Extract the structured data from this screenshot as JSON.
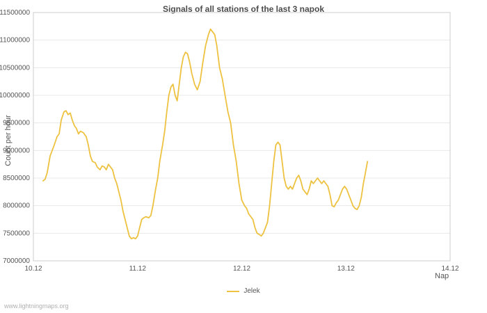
{
  "chart_data": {
    "type": "line",
    "title": "Signals of all stations of the last 3 napok",
    "xlabel": "Nap",
    "ylabel": "Count per hour",
    "xlim": [
      0,
      4
    ],
    "ylim": [
      7000000,
      11500000
    ],
    "grid": "horizontal",
    "grid_color": "#e8e8e8",
    "border_color": "#cccccc",
    "text_color": "#545454",
    "legend_position": "bottom-center",
    "yticks": [
      7000000,
      7500000,
      8000000,
      8500000,
      9000000,
      9500000,
      10000000,
      10500000,
      11000000,
      11500000
    ],
    "xticks": [
      {
        "value": 0,
        "label": "10.12"
      },
      {
        "value": 1,
        "label": "11.12"
      },
      {
        "value": 2,
        "label": "12.12"
      },
      {
        "value": 3,
        "label": "13.12"
      },
      {
        "value": 4,
        "label": "14.12"
      }
    ],
    "series": [
      {
        "name": "Jelek",
        "color": "#edc240",
        "points": [
          [
            0.093,
            8450000
          ],
          [
            0.113,
            8480000
          ],
          [
            0.133,
            8600000
          ],
          [
            0.16,
            8900000
          ],
          [
            0.18,
            9000000
          ],
          [
            0.2,
            9100000
          ],
          [
            0.227,
            9250000
          ],
          [
            0.247,
            9300000
          ],
          [
            0.267,
            9550000
          ],
          [
            0.293,
            9700000
          ],
          [
            0.313,
            9720000
          ],
          [
            0.333,
            9650000
          ],
          [
            0.353,
            9680000
          ],
          [
            0.373,
            9550000
          ],
          [
            0.393,
            9450000
          ],
          [
            0.413,
            9400000
          ],
          [
            0.433,
            9300000
          ],
          [
            0.453,
            9350000
          ],
          [
            0.48,
            9320000
          ],
          [
            0.507,
            9250000
          ],
          [
            0.527,
            9100000
          ],
          [
            0.547,
            8900000
          ],
          [
            0.567,
            8800000
          ],
          [
            0.593,
            8780000
          ],
          [
            0.613,
            8700000
          ],
          [
            0.64,
            8650000
          ],
          [
            0.66,
            8720000
          ],
          [
            0.68,
            8700000
          ],
          [
            0.7,
            8650000
          ],
          [
            0.72,
            8750000
          ],
          [
            0.74,
            8700000
          ],
          [
            0.76,
            8650000
          ],
          [
            0.78,
            8500000
          ],
          [
            0.8,
            8400000
          ],
          [
            0.82,
            8250000
          ],
          [
            0.84,
            8100000
          ],
          [
            0.86,
            7900000
          ],
          [
            0.88,
            7750000
          ],
          [
            0.9,
            7600000
          ],
          [
            0.92,
            7450000
          ],
          [
            0.94,
            7400000
          ],
          [
            0.96,
            7420000
          ],
          [
            0.98,
            7400000
          ],
          [
            1.0,
            7450000
          ],
          [
            1.02,
            7600000
          ],
          [
            1.04,
            7750000
          ],
          [
            1.06,
            7780000
          ],
          [
            1.08,
            7800000
          ],
          [
            1.107,
            7780000
          ],
          [
            1.127,
            7820000
          ],
          [
            1.147,
            8000000
          ],
          [
            1.173,
            8300000
          ],
          [
            1.193,
            8500000
          ],
          [
            1.213,
            8800000
          ],
          [
            1.24,
            9100000
          ],
          [
            1.26,
            9350000
          ],
          [
            1.28,
            9700000
          ],
          [
            1.3,
            10000000
          ],
          [
            1.32,
            10150000
          ],
          [
            1.34,
            10200000
          ],
          [
            1.36,
            10000000
          ],
          [
            1.38,
            9900000
          ],
          [
            1.4,
            10200000
          ],
          [
            1.42,
            10500000
          ],
          [
            1.44,
            10700000
          ],
          [
            1.46,
            10780000
          ],
          [
            1.48,
            10750000
          ],
          [
            1.5,
            10600000
          ],
          [
            1.52,
            10400000
          ],
          [
            1.547,
            10200000
          ],
          [
            1.573,
            10100000
          ],
          [
            1.6,
            10250000
          ],
          [
            1.627,
            10600000
          ],
          [
            1.653,
            10900000
          ],
          [
            1.68,
            11100000
          ],
          [
            1.7,
            11200000
          ],
          [
            1.72,
            11150000
          ],
          [
            1.74,
            11100000
          ],
          [
            1.76,
            10900000
          ],
          [
            1.787,
            10500000
          ],
          [
            1.813,
            10300000
          ],
          [
            1.84,
            10000000
          ],
          [
            1.867,
            9700000
          ],
          [
            1.893,
            9500000
          ],
          [
            1.92,
            9100000
          ],
          [
            1.947,
            8800000
          ],
          [
            1.973,
            8400000
          ],
          [
            2.0,
            8100000
          ],
          [
            2.027,
            8000000
          ],
          [
            2.047,
            7950000
          ],
          [
            2.067,
            7850000
          ],
          [
            2.087,
            7800000
          ],
          [
            2.107,
            7750000
          ],
          [
            2.127,
            7600000
          ],
          [
            2.147,
            7500000
          ],
          [
            2.167,
            7480000
          ],
          [
            2.187,
            7450000
          ],
          [
            2.207,
            7500000
          ],
          [
            2.227,
            7600000
          ],
          [
            2.247,
            7700000
          ],
          [
            2.267,
            8000000
          ],
          [
            2.287,
            8400000
          ],
          [
            2.307,
            8800000
          ],
          [
            2.327,
            9100000
          ],
          [
            2.347,
            9150000
          ],
          [
            2.367,
            9100000
          ],
          [
            2.387,
            8800000
          ],
          [
            2.407,
            8500000
          ],
          [
            2.427,
            8350000
          ],
          [
            2.447,
            8300000
          ],
          [
            2.467,
            8350000
          ],
          [
            2.487,
            8300000
          ],
          [
            2.507,
            8400000
          ],
          [
            2.527,
            8500000
          ],
          [
            2.547,
            8550000
          ],
          [
            2.567,
            8450000
          ],
          [
            2.587,
            8300000
          ],
          [
            2.607,
            8250000
          ],
          [
            2.627,
            8200000
          ],
          [
            2.647,
            8300000
          ],
          [
            2.667,
            8450000
          ],
          [
            2.687,
            8400000
          ],
          [
            2.707,
            8450000
          ],
          [
            2.727,
            8500000
          ],
          [
            2.747,
            8450000
          ],
          [
            2.767,
            8400000
          ],
          [
            2.787,
            8450000
          ],
          [
            2.807,
            8400000
          ],
          [
            2.827,
            8350000
          ],
          [
            2.847,
            8200000
          ],
          [
            2.867,
            8000000
          ],
          [
            2.887,
            7980000
          ],
          [
            2.907,
            8050000
          ],
          [
            2.927,
            8100000
          ],
          [
            2.947,
            8200000
          ],
          [
            2.967,
            8300000
          ],
          [
            2.987,
            8350000
          ],
          [
            3.007,
            8300000
          ],
          [
            3.027,
            8200000
          ],
          [
            3.047,
            8100000
          ],
          [
            3.067,
            8000000
          ],
          [
            3.087,
            7950000
          ],
          [
            3.107,
            7930000
          ],
          [
            3.127,
            8000000
          ],
          [
            3.147,
            8150000
          ],
          [
            3.167,
            8400000
          ],
          [
            3.187,
            8600000
          ],
          [
            3.207,
            8800000
          ]
        ]
      }
    ]
  },
  "footer": {
    "watermark": "www.lightningmaps.org"
  }
}
